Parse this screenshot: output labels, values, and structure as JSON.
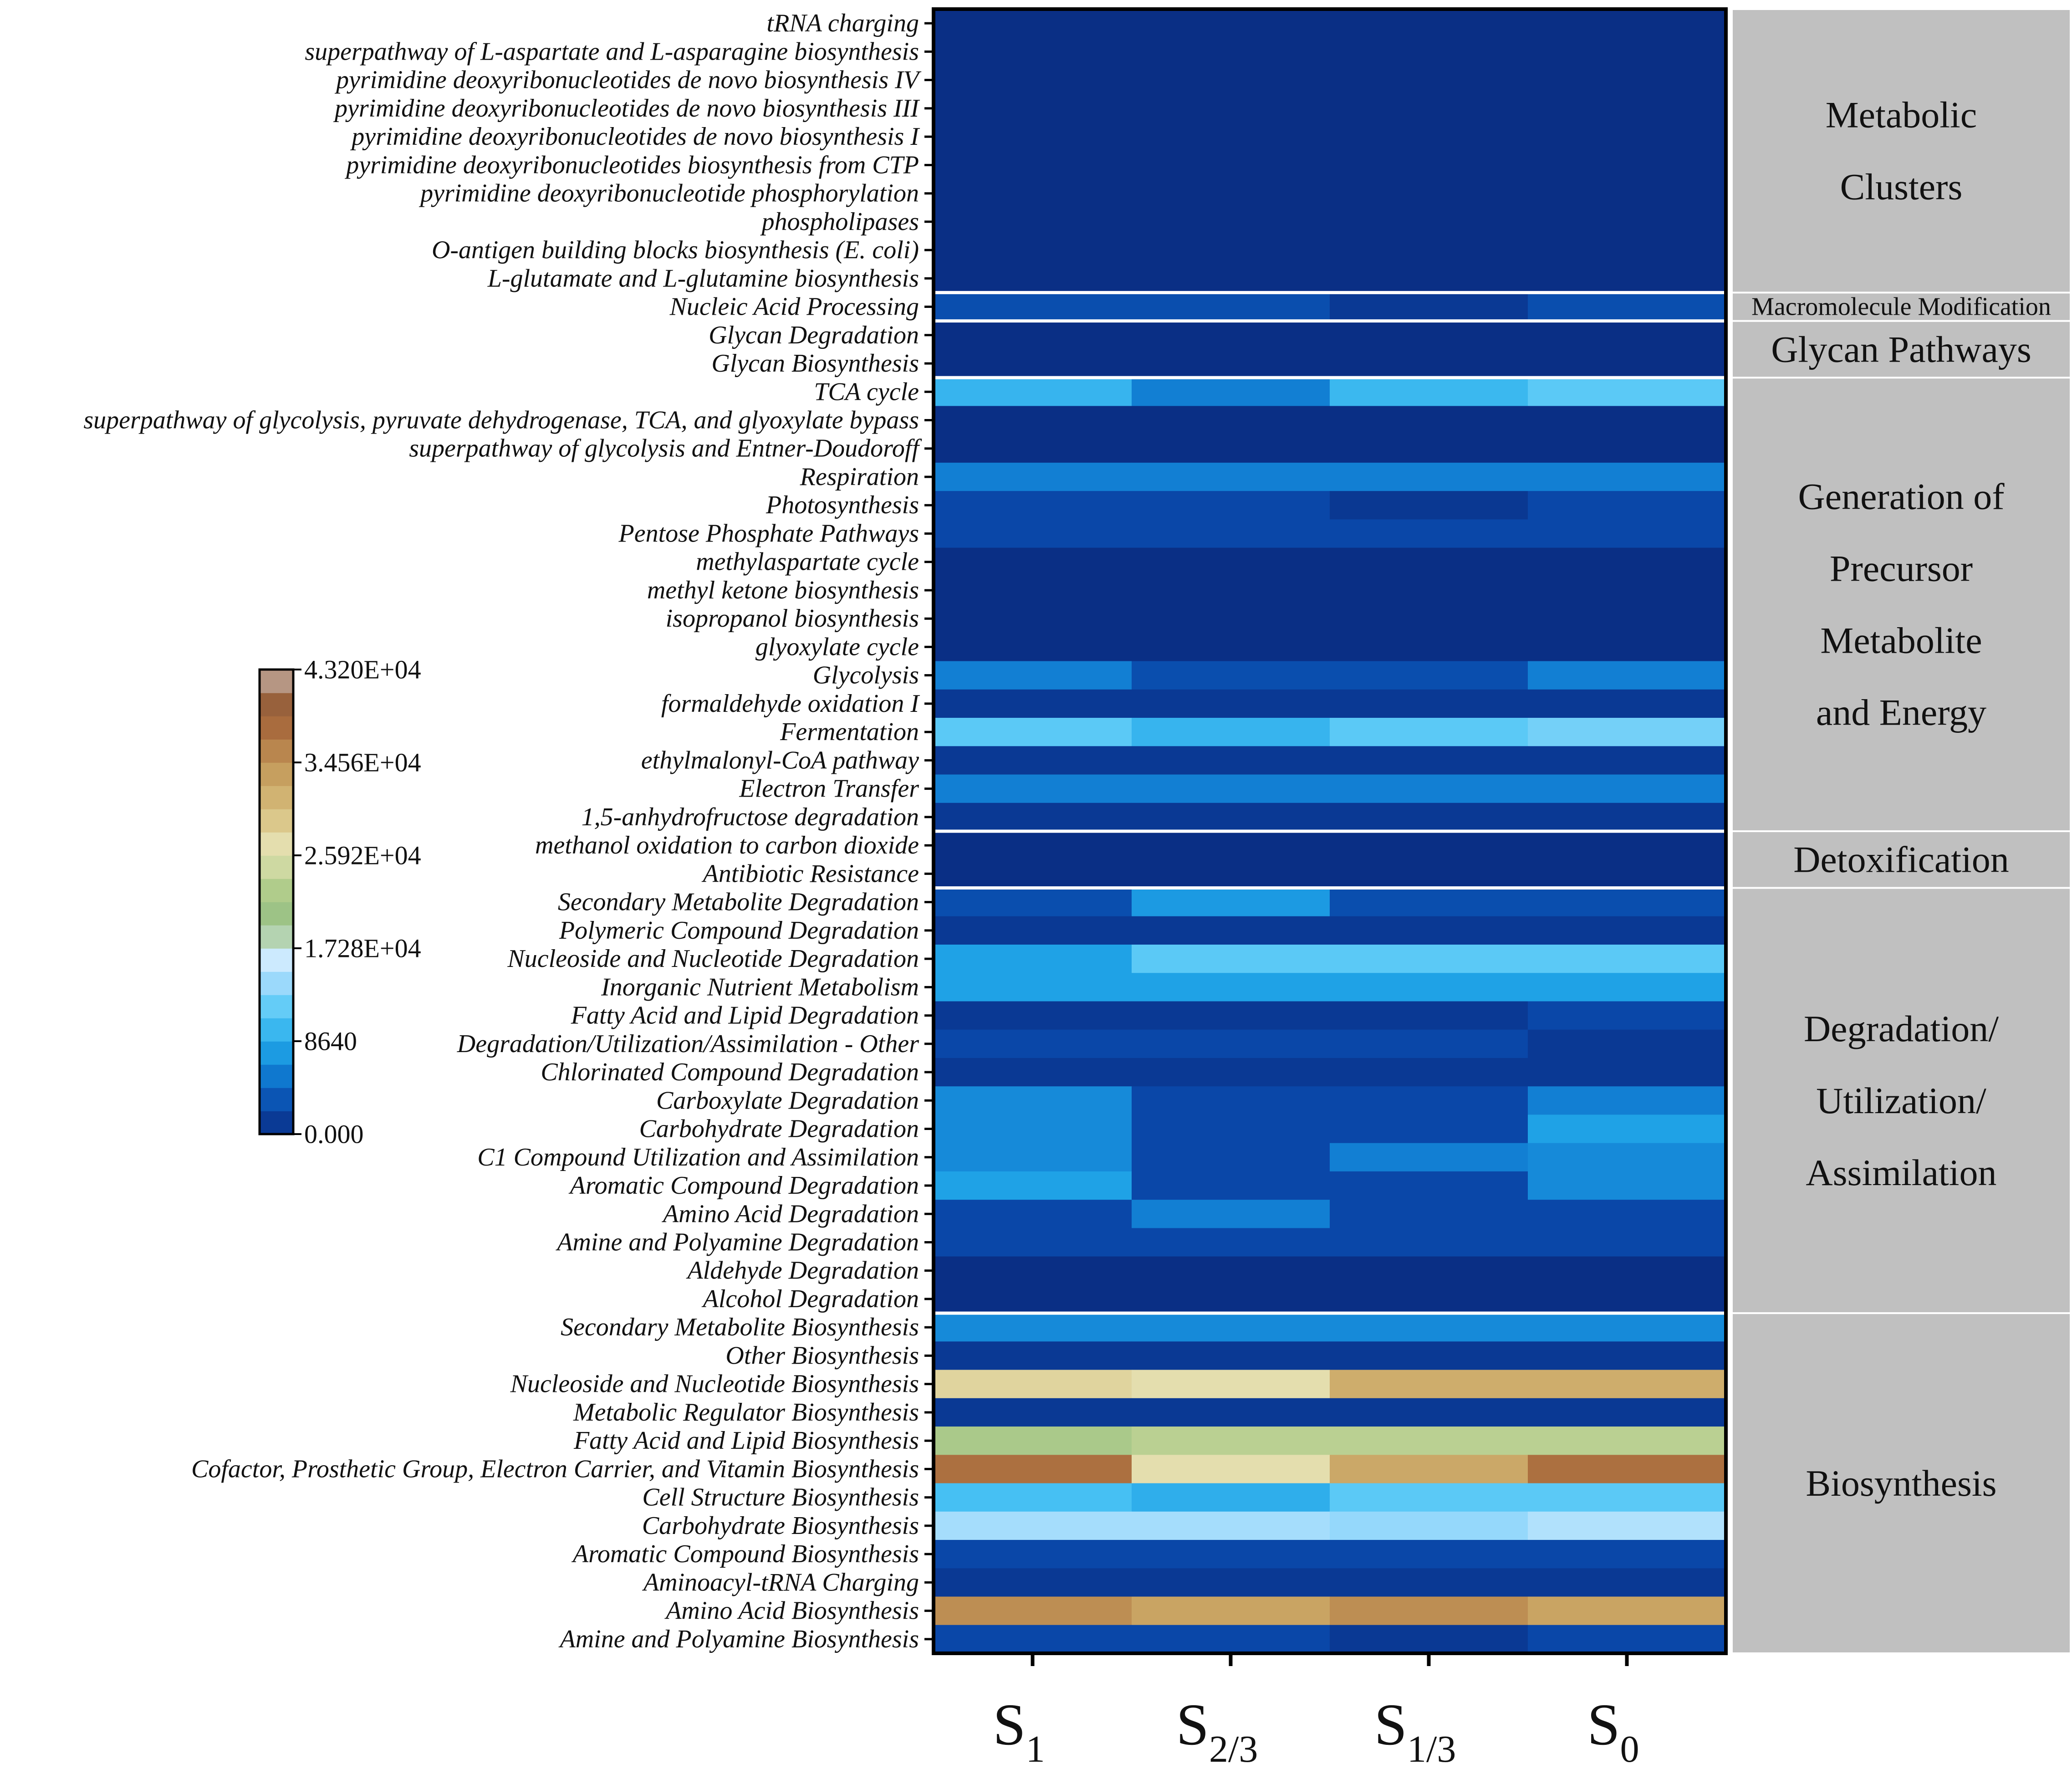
{
  "chart_data": {
    "type": "heatmap",
    "title": "",
    "columns": [
      {
        "main": "S",
        "sub": "1"
      },
      {
        "main": "S",
        "sub": "2/3"
      },
      {
        "main": "S",
        "sub": "1/3"
      },
      {
        "main": "S",
        "sub": "0"
      }
    ],
    "value_range": [
      0,
      43200
    ],
    "colorbar": {
      "tick_labels": [
        "4.320E+04",
        "3.456E+04",
        "2.592E+04",
        "1.728E+04",
        "8640",
        "0.000"
      ],
      "tick_values": [
        43200,
        34560,
        25920,
        17280,
        8640,
        0
      ],
      "stops": [
        {
          "v": 0,
          "c": "#0a2f85"
        },
        {
          "v": 2400,
          "c": "#0a47a8"
        },
        {
          "v": 5000,
          "c": "#0d72cc"
        },
        {
          "v": 8000,
          "c": "#1fa2e6"
        },
        {
          "v": 11000,
          "c": "#4ec6f5"
        },
        {
          "v": 14000,
          "c": "#9ad9fb"
        },
        {
          "v": 16800,
          "c": "#d9efff"
        },
        {
          "v": 17280,
          "c": "#f2f9ff"
        },
        {
          "v": 19000,
          "c": "#8fbd82"
        },
        {
          "v": 23000,
          "c": "#b3cd8c"
        },
        {
          "v": 26500,
          "c": "#e6e3b6"
        },
        {
          "v": 30000,
          "c": "#d7c07e"
        },
        {
          "v": 34000,
          "c": "#c49a5a"
        },
        {
          "v": 38000,
          "c": "#a86a3c"
        },
        {
          "v": 41500,
          "c": "#8c5a3c"
        },
        {
          "v": 43200,
          "c": "#ffffff"
        }
      ]
    },
    "rows": [
      {
        "label": "tRNA charging",
        "values": [
          0,
          0,
          0,
          0
        ]
      },
      {
        "label": "superpathway of L-aspartate and L-asparagine biosynthesis",
        "values": [
          0,
          0,
          0,
          0
        ]
      },
      {
        "label": "pyrimidine deoxyribonucleotides de novo biosynthesis IV",
        "values": [
          0,
          0,
          0,
          0
        ]
      },
      {
        "label": "pyrimidine deoxyribonucleotides de novo biosynthesis III",
        "values": [
          0,
          0,
          0,
          0
        ]
      },
      {
        "label": "pyrimidine deoxyribonucleotides de novo biosynthesis I",
        "values": [
          0,
          0,
          0,
          0
        ]
      },
      {
        "label": "pyrimidine deoxyribonucleotides biosynthesis from CTP",
        "values": [
          0,
          0,
          0,
          0
        ]
      },
      {
        "label": "pyrimidine deoxyribonucleotide phosphorylation",
        "values": [
          0,
          0,
          0,
          0
        ]
      },
      {
        "label": "phospholipases",
        "values": [
          0,
          0,
          0,
          0
        ]
      },
      {
        "label": "O-antigen building blocks biosynthesis (E. coli)",
        "values": [
          0,
          0,
          0,
          0
        ]
      },
      {
        "label": "L-glutamate and L-glutamine biosynthesis",
        "values": [
          0,
          0,
          0,
          0
        ]
      },
      {
        "label": "Nucleic Acid Processing",
        "values": [
          2800,
          2800,
          1000,
          2800
        ]
      },
      {
        "label": "Glycan Degradation",
        "values": [
          0,
          0,
          0,
          0
        ]
      },
      {
        "label": "Glycan Biosynthesis",
        "values": [
          0,
          0,
          0,
          0
        ]
      },
      {
        "label": "TCA cycle",
        "values": [
          9500,
          5800,
          9800,
          11500
        ]
      },
      {
        "label": "superpathway of glycolysis, pyruvate dehydrogenase, TCA, and glyoxylate bypass",
        "values": [
          0,
          0,
          0,
          0
        ]
      },
      {
        "label": "superpathway of glycolysis and Entner-Doudoroff",
        "values": [
          0,
          0,
          0,
          0
        ]
      },
      {
        "label": "Respiration",
        "values": [
          5800,
          5800,
          5800,
          5800
        ]
      },
      {
        "label": "Photosynthesis",
        "values": [
          2400,
          2400,
          900,
          2400
        ]
      },
      {
        "label": "Pentose Phosphate Pathways",
        "values": [
          2400,
          2400,
          2400,
          2400
        ]
      },
      {
        "label": "methylaspartate cycle",
        "values": [
          0,
          0,
          0,
          0
        ]
      },
      {
        "label": "methyl ketone biosynthesis",
        "values": [
          0,
          0,
          0,
          0
        ]
      },
      {
        "label": "isopropanol biosynthesis",
        "values": [
          0,
          0,
          0,
          0
        ]
      },
      {
        "label": "glyoxylate cycle",
        "values": [
          0,
          0,
          0,
          0
        ]
      },
      {
        "label": "Glycolysis",
        "values": [
          5800,
          2800,
          2800,
          5800
        ]
      },
      {
        "label": "formaldehyde oxidation I",
        "values": [
          1000,
          1000,
          1000,
          1000
        ]
      },
      {
        "label": "Fermentation",
        "values": [
          11500,
          9500,
          11500,
          12500
        ]
      },
      {
        "label": "ethylmalonyl-CoA pathway",
        "values": [
          1000,
          1000,
          1000,
          1000
        ]
      },
      {
        "label": "Electron Transfer",
        "values": [
          5800,
          5800,
          5800,
          5800
        ]
      },
      {
        "label": "1,5-anhydrofructose degradation",
        "values": [
          1000,
          1000,
          1000,
          1000
        ]
      },
      {
        "label": "methanol oxidation to carbon dioxide",
        "values": [
          0,
          0,
          0,
          0
        ]
      },
      {
        "label": "Antibiotic Resistance",
        "values": [
          0,
          0,
          0,
          0
        ]
      },
      {
        "label": "Secondary Metabolite Degradation",
        "values": [
          2800,
          7500,
          2800,
          2800
        ]
      },
      {
        "label": "Polymeric Compound Degradation",
        "values": [
          1000,
          1000,
          1000,
          1000
        ]
      },
      {
        "label": "Nucleoside and Nucleotide Degradation",
        "values": [
          8000,
          11500,
          11500,
          11500
        ]
      },
      {
        "label": "Inorganic Nutrient Metabolism",
        "values": [
          8000,
          8000,
          8000,
          8000
        ]
      },
      {
        "label": "Fatty Acid and Lipid Degradation",
        "values": [
          1000,
          1000,
          1000,
          2400
        ]
      },
      {
        "label": "Degradation/Utilization/Assimilation - Other",
        "values": [
          2400,
          2400,
          2400,
          1000
        ]
      },
      {
        "label": "Chlorinated Compound Degradation",
        "values": [
          1000,
          1000,
          1000,
          1000
        ]
      },
      {
        "label": "Carboxylate Degradation",
        "values": [
          6500,
          2400,
          2400,
          5800
        ]
      },
      {
        "label": "Carbohydrate Degradation",
        "values": [
          6500,
          2400,
          2400,
          8000
        ]
      },
      {
        "label": "C1 Compound Utilization and Assimilation",
        "values": [
          6500,
          2400,
          5800,
          6500
        ]
      },
      {
        "label": "Aromatic Compound Degradation",
        "values": [
          8000,
          2400,
          2400,
          6500
        ]
      },
      {
        "label": "Amino Acid Degradation",
        "values": [
          2400,
          5800,
          2400,
          2400
        ]
      },
      {
        "label": "Amine and Polyamine Degradation",
        "values": [
          2400,
          2400,
          2400,
          2400
        ]
      },
      {
        "label": "Aldehyde Degradation",
        "values": [
          0,
          0,
          0,
          0
        ]
      },
      {
        "label": "Alcohol Degradation",
        "values": [
          0,
          0,
          0,
          0
        ]
      },
      {
        "label": "Secondary Metabolite Biosynthesis",
        "values": [
          6500,
          6500,
          6500,
          6500
        ]
      },
      {
        "label": "Other Biosynthesis",
        "values": [
          1000,
          1000,
          1000,
          1000
        ]
      },
      {
        "label": "Nucleoside and Nucleotide Biosynthesis",
        "values": [
          28000,
          27000,
          32000,
          32000
        ]
      },
      {
        "label": "Metabolic Regulator Biosynthesis",
        "values": [
          1000,
          1000,
          1000,
          1000
        ]
      },
      {
        "label": "Fatty Acid and Lipid Biosynthesis",
        "values": [
          22000,
          23500,
          23500,
          23500
        ]
      },
      {
        "label": "Cofactor, Prosthetic Group, Electron Carrier, and Vitamin Biosynthesis",
        "values": [
          37500,
          27000,
          32500,
          37500
        ]
      },
      {
        "label": "Cell Structure Biosynthesis",
        "values": [
          10500,
          9000,
          11500,
          11500
        ]
      },
      {
        "label": "Carbohydrate Biosynthesis",
        "values": [
          14500,
          14500,
          13800,
          15000
        ]
      },
      {
        "label": "Aromatic Compound Biosynthesis",
        "values": [
          2400,
          2400,
          2400,
          2400
        ]
      },
      {
        "label": "Aminoacyl-tRNA Charging",
        "values": [
          1000,
          1000,
          1000,
          1000
        ]
      },
      {
        "label": "Amino Acid Biosynthesis",
        "values": [
          35000,
          33000,
          35000,
          33000
        ]
      },
      {
        "label": "Amine and Polyamine Biosynthesis",
        "values": [
          2400,
          2400,
          1000,
          2400
        ]
      }
    ],
    "groups": [
      {
        "lines": [
          "Metabolic",
          "Clusters"
        ],
        "start": 0,
        "end": 9,
        "small": false
      },
      {
        "lines": [
          "Macromolecule Modification"
        ],
        "start": 10,
        "end": 10,
        "small": true
      },
      {
        "lines": [
          "Glycan Pathways"
        ],
        "start": 11,
        "end": 12,
        "small": false
      },
      {
        "lines": [
          "Generation of",
          "Precursor",
          "Metabolite",
          "and Energy"
        ],
        "start": 13,
        "end": 28,
        "small": false
      },
      {
        "lines": [
          "Detoxification"
        ],
        "start": 29,
        "end": 30,
        "small": false
      },
      {
        "lines": [
          "Degradation/",
          "Utilization/",
          "Assimilation"
        ],
        "start": 31,
        "end": 45,
        "small": false
      },
      {
        "lines": [
          "Biosynthesis"
        ],
        "start": 46,
        "end": 57,
        "small": false
      }
    ],
    "colors": {
      "group_panel": "#c0c0c0",
      "separator": "#ffffff",
      "frame": "#000000"
    }
  }
}
